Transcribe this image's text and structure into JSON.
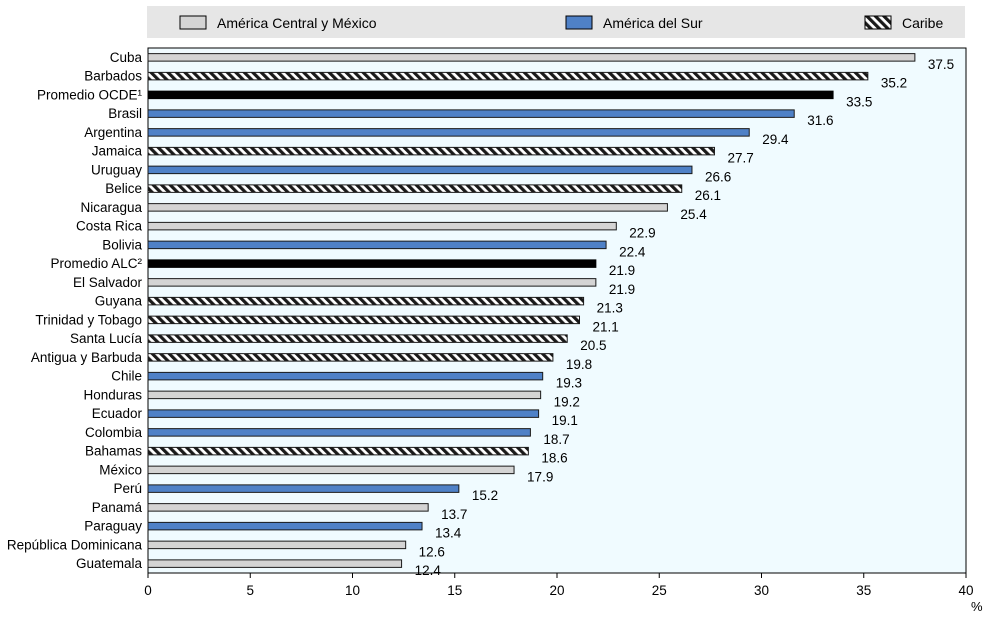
{
  "chart_data": {
    "type": "bar",
    "orientation": "horizontal",
    "xlabel": "",
    "ylabel": "",
    "unit_label": "%",
    "xlim": [
      0,
      40
    ],
    "xticks": [
      0,
      5,
      10,
      15,
      20,
      25,
      30,
      35,
      40
    ],
    "legend_position": "top",
    "grid": false,
    "series": [
      {
        "name": "América Central y México",
        "key": "central",
        "color": "#d4d4d4",
        "pattern": "solid"
      },
      {
        "name": "América del Sur",
        "key": "sur",
        "color": "#4f81c7",
        "pattern": "solid"
      },
      {
        "name": "Caribe",
        "key": "caribe",
        "color": "#ffffff",
        "pattern": "hatch"
      }
    ],
    "categories": [
      {
        "label": "Cuba",
        "value": 37.5,
        "group": "central"
      },
      {
        "label": "Barbados",
        "value": 35.2,
        "group": "caribe"
      },
      {
        "label": "Promedio OCDE¹",
        "value": 33.5,
        "group": "average"
      },
      {
        "label": "Brasil",
        "value": 31.6,
        "group": "sur"
      },
      {
        "label": "Argentina",
        "value": 29.4,
        "group": "sur"
      },
      {
        "label": "Jamaica",
        "value": 27.7,
        "group": "caribe"
      },
      {
        "label": "Uruguay",
        "value": 26.6,
        "group": "sur"
      },
      {
        "label": "Belice",
        "value": 26.1,
        "group": "caribe"
      },
      {
        "label": "Nicaragua",
        "value": 25.4,
        "group": "central"
      },
      {
        "label": "Costa Rica",
        "value": 22.9,
        "group": "central"
      },
      {
        "label": "Bolivia",
        "value": 22.4,
        "group": "sur"
      },
      {
        "label": "Promedio ALC²",
        "value": 21.9,
        "group": "average"
      },
      {
        "label": "El Salvador",
        "value": 21.9,
        "group": "central"
      },
      {
        "label": "Guyana",
        "value": 21.3,
        "group": "caribe"
      },
      {
        "label": "Trinidad y Tobago",
        "value": 21.1,
        "group": "caribe"
      },
      {
        "label": "Santa Lucía",
        "value": 20.5,
        "group": "caribe"
      },
      {
        "label": "Antigua y Barbuda",
        "value": 19.8,
        "group": "caribe"
      },
      {
        "label": "Chile",
        "value": 19.3,
        "group": "sur"
      },
      {
        "label": "Honduras",
        "value": 19.2,
        "group": "central"
      },
      {
        "label": "Ecuador",
        "value": 19.1,
        "group": "sur"
      },
      {
        "label": "Colombia",
        "value": 18.7,
        "group": "sur"
      },
      {
        "label": "Bahamas",
        "value": 18.6,
        "group": "caribe"
      },
      {
        "label": "México",
        "value": 17.9,
        "group": "central"
      },
      {
        "label": "Perú",
        "value": 15.2,
        "group": "sur"
      },
      {
        "label": "Panamá",
        "value": 13.7,
        "group": "central"
      },
      {
        "label": "Paraguay",
        "value": 13.4,
        "group": "sur"
      },
      {
        "label": "República Dominicana",
        "value": 12.6,
        "group": "central"
      },
      {
        "label": "Guatemala",
        "value": 12.4,
        "group": "central"
      }
    ],
    "colors": {
      "central": "#d4d4d4",
      "sur": "#4f81c7",
      "average": "#000000",
      "plot_background": "#f0fbff",
      "legend_background": "#e6e6e6"
    }
  }
}
